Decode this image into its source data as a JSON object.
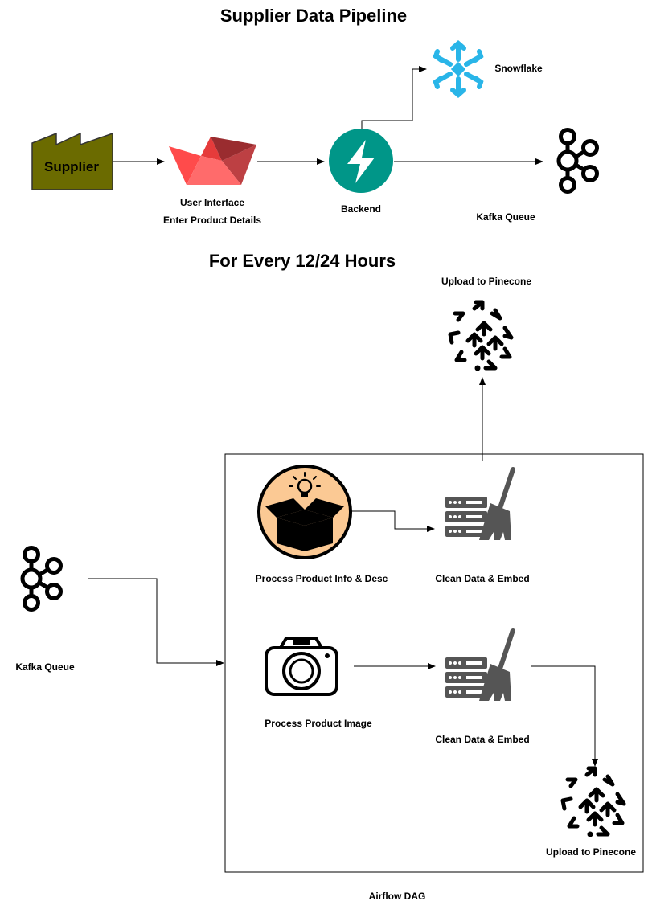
{
  "titles": {
    "main": "Supplier Data Pipeline",
    "schedule": "For Every 12/24 Hours"
  },
  "nodes": {
    "supplier": "Supplier",
    "user_interface": "User Interface",
    "enter_details": "Enter Product Details",
    "backend": "Backend",
    "snowflake": "Snowflake",
    "kafka_top": "Kafka Queue",
    "kafka_left": "Kafka Queue",
    "process_info": "Process Product Info & Desc",
    "clean_embed_1": "Clean Data & Embed",
    "process_image": "Process Product Image",
    "clean_embed_2": "Clean Data & Embed",
    "pinecone_top": "Upload to Pinecone",
    "pinecone_bottom": "Upload to Pinecone",
    "airflow_dag": "Airflow DAG"
  },
  "colors": {
    "supplier_fill": "#6b6b00",
    "streamlit_red": "#ff4b4b",
    "fastapi_teal": "#009688",
    "snowflake_blue": "#29b5e8",
    "box_orange": "#fbc994",
    "server_gray": "#555555"
  },
  "icons": {
    "supplier": "factory-icon",
    "user_interface": "streamlit-boat-icon",
    "backend": "fastapi-bolt-icon",
    "snowflake": "snowflake-icon",
    "kafka": "kafka-icon",
    "process_info": "box-lightbulb-icon",
    "clean_embed": "server-broom-icon",
    "process_image": "camera-icon",
    "pinecone": "pinecone-icon"
  }
}
